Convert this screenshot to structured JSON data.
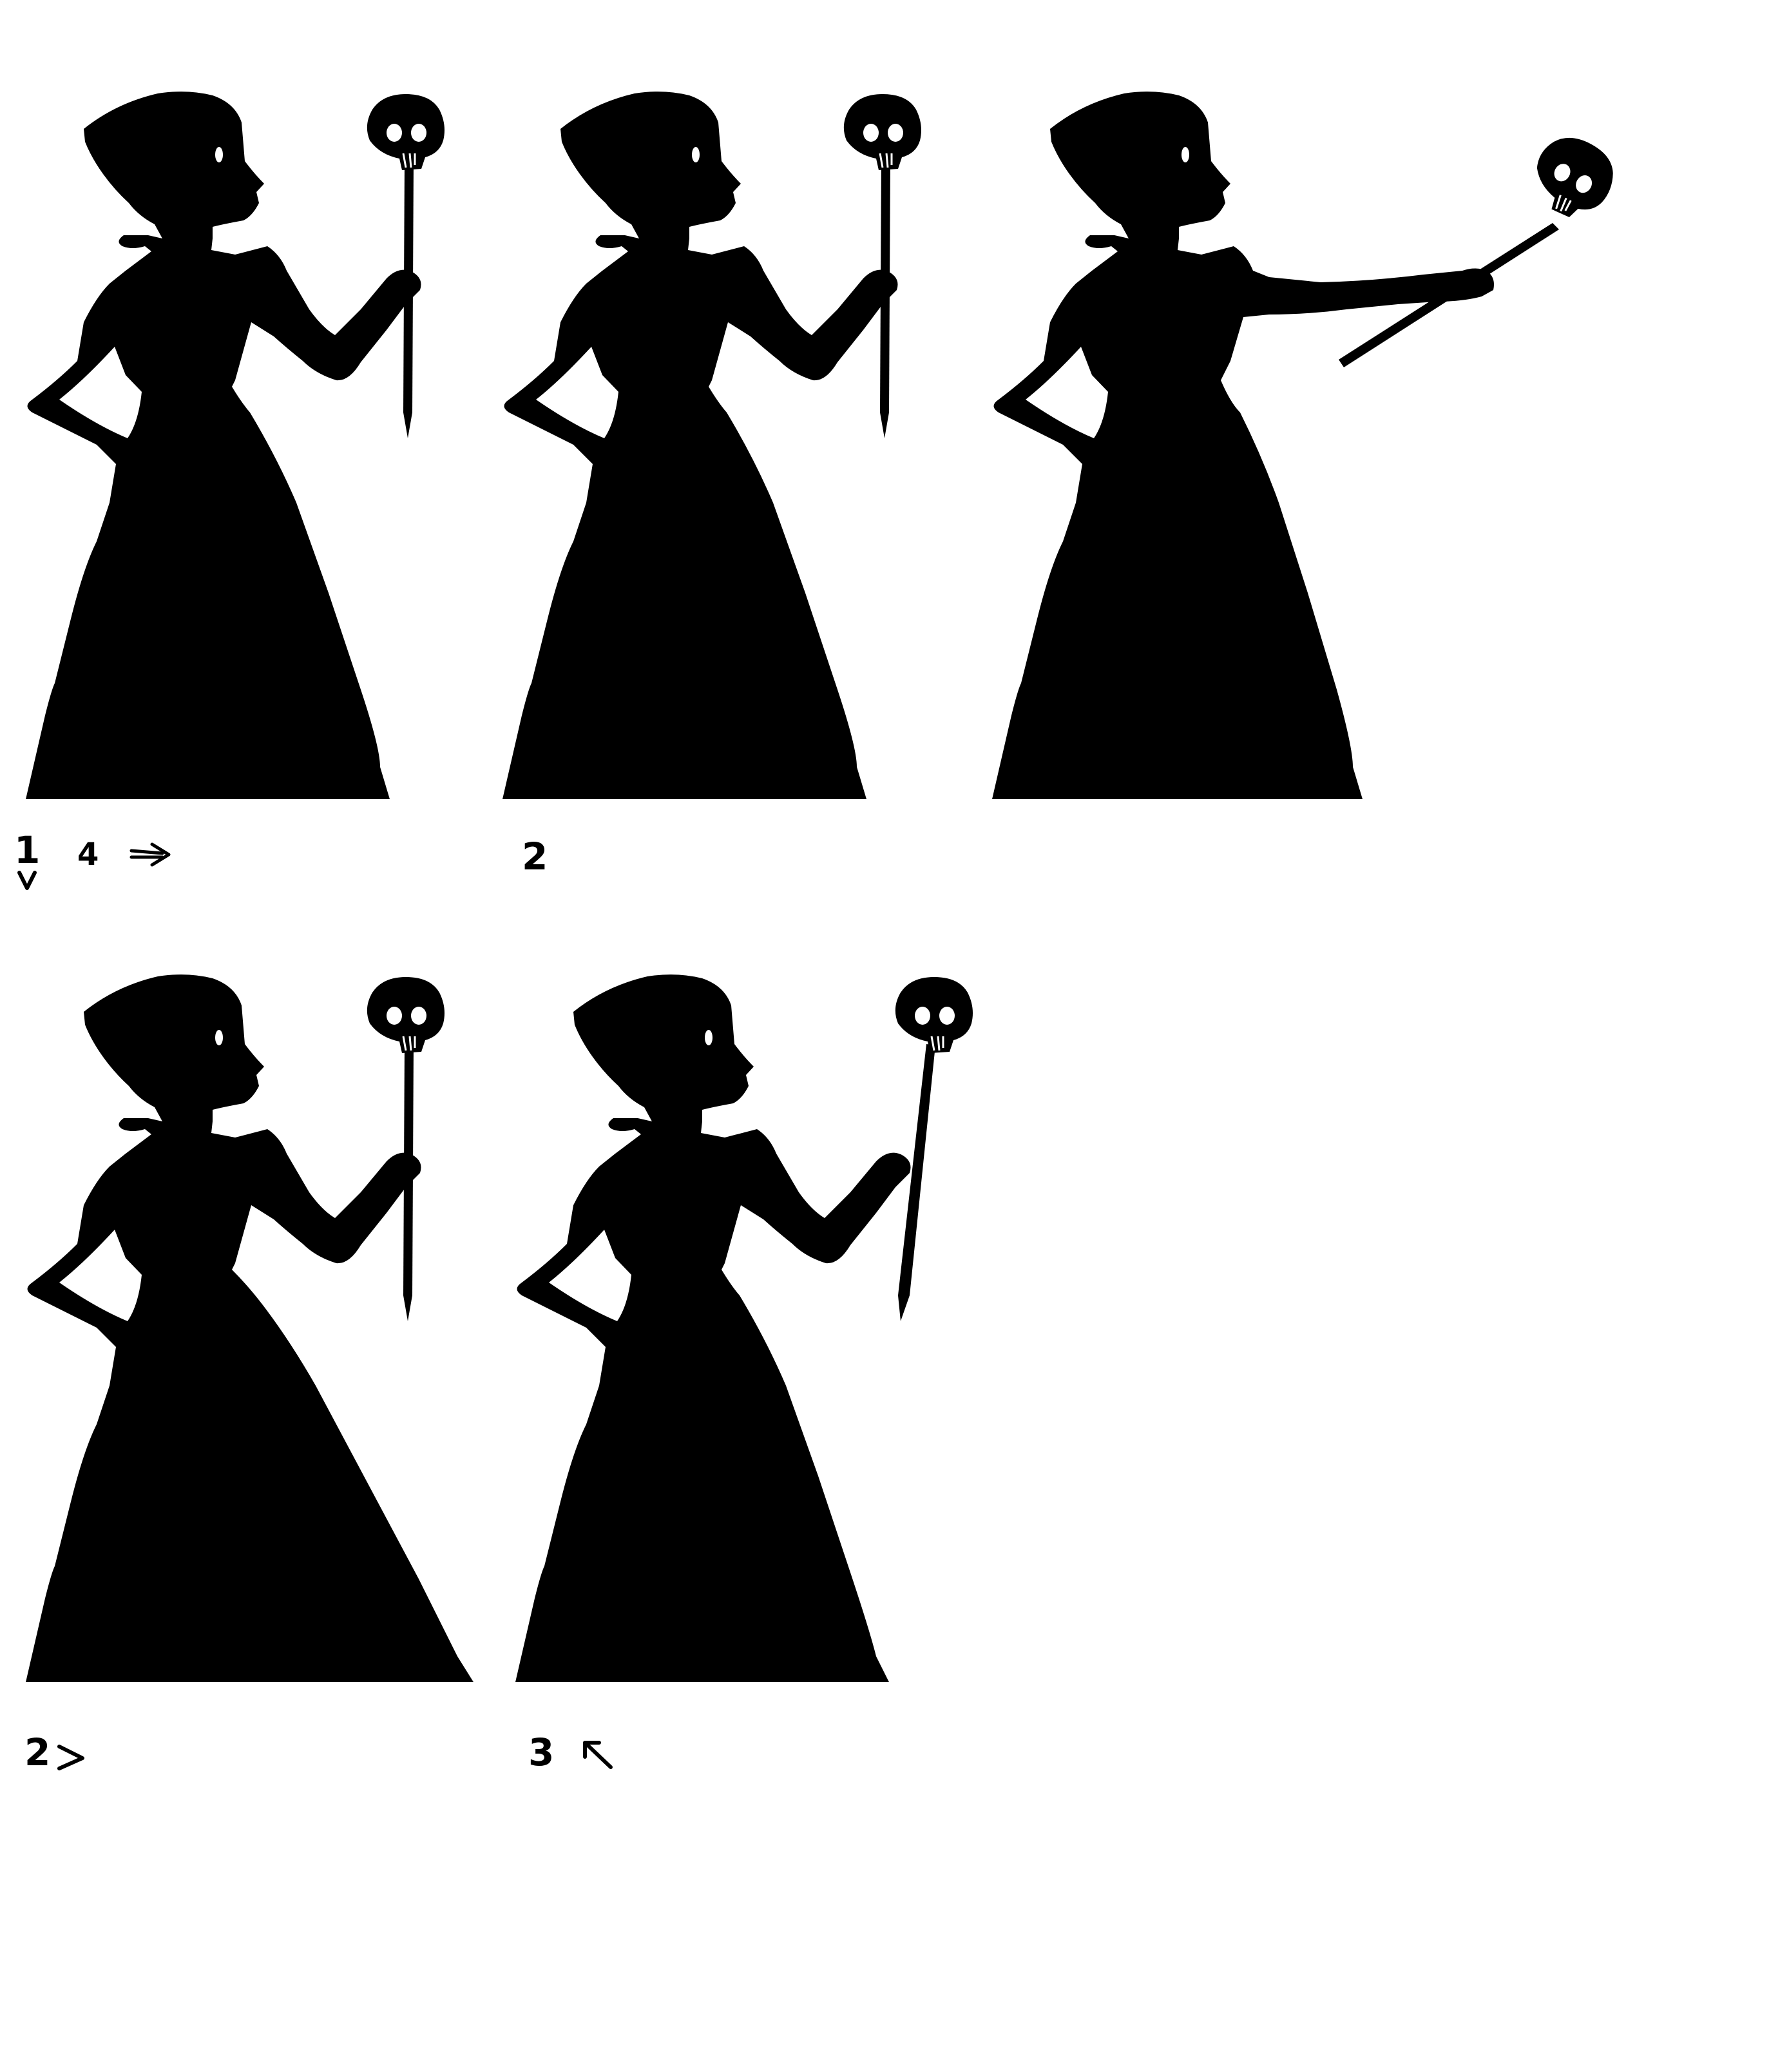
{
  "panels": [
    {
      "label": "1",
      "extra_label": "4",
      "pose": "staff-down",
      "annotations": [
        "arrow-down",
        "arrow-right"
      ]
    },
    {
      "label": "2",
      "extra_label": "",
      "pose": "staff-down",
      "annotations": []
    },
    {
      "label": "",
      "extra_label": "",
      "pose": "arm-extended",
      "annotations": []
    },
    {
      "label": "2",
      "extra_label": "",
      "pose": "staff-down-wide-skirt",
      "annotations": [
        "chevron-right"
      ]
    },
    {
      "label": "3",
      "extra_label": "",
      "pose": "staff-tilted-wide-skirt",
      "annotations": [
        "arrow-up-left"
      ]
    }
  ],
  "colors": {
    "silhouette": "#000000",
    "background": "#ffffff"
  }
}
